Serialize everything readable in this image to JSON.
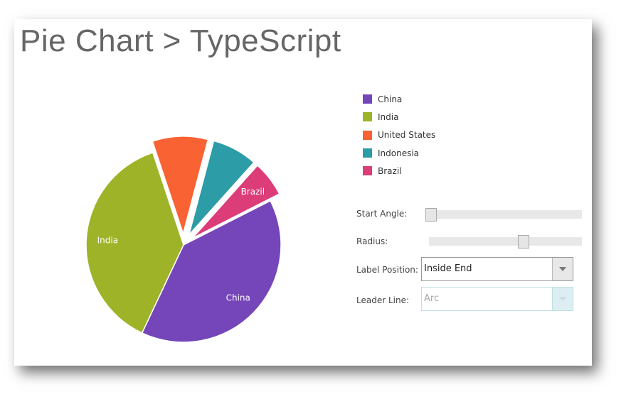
{
  "title": "Pie Chart > TypeScript",
  "chart_data": {
    "type": "pie",
    "categories": [
      "China",
      "India",
      "United States",
      "Indonesia",
      "Brazil"
    ],
    "values": [
      39.5,
      37.9,
      9.2,
      7.5,
      5.9
    ],
    "colors": [
      "#7446b9",
      "#9fb328",
      "#f96232",
      "#2c9ca6",
      "#dc3c78"
    ],
    "exploded": [
      false,
      false,
      true,
      true,
      true
    ],
    "slice_labels": [
      "China",
      "India",
      "",
      "",
      "Brazil"
    ],
    "legend_position": "right"
  },
  "controls": {
    "start_angle": {
      "label": "Start Angle:",
      "value": 0
    },
    "radius": {
      "label": "Radius:",
      "value_percent": 63
    },
    "label_position": {
      "label": "Label Position:",
      "value": "Inside End"
    },
    "leader_line": {
      "label": "Leader Line:",
      "value": "Arc",
      "disabled": true
    }
  }
}
